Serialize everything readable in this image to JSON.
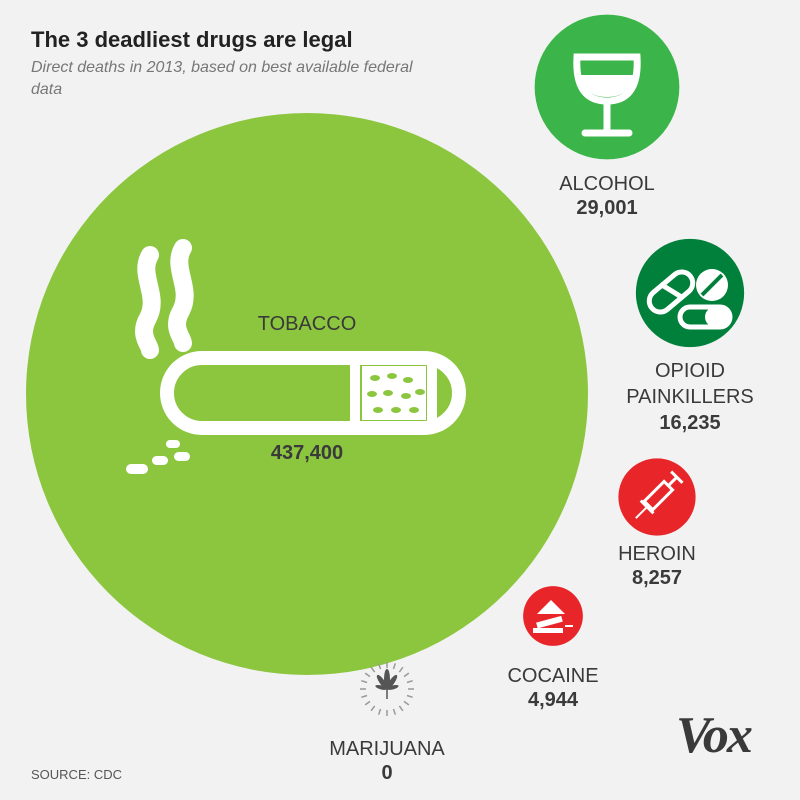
{
  "title": "The 3 deadliest drugs are legal",
  "subtitle": "Direct deaths in 2013, based on best available federal data",
  "source": "SOURCE: CDC",
  "logo": "Vox",
  "colors": {
    "legal": "#8cc63f",
    "alcohol": "#3bb54a",
    "opioid": "#00803b",
    "illegal": "#e8262a",
    "text": "#3a3a3a",
    "background": "#f2f2f2"
  },
  "chart_data": {
    "type": "bubble",
    "unit": "deaths",
    "items": [
      {
        "label": "TOBACCO",
        "value": 437400,
        "value_label": "437,400",
        "icon": "cigarette-icon"
      },
      {
        "label": "ALCOHOL",
        "value": 29001,
        "value_label": "29,001",
        "icon": "wine-glass-icon"
      },
      {
        "label": "OPIOID PAINKILLERS",
        "label_lines": [
          "OPIOID",
          "PAINKILLERS"
        ],
        "value": 16235,
        "value_label": "16,235",
        "icon": "pills-icon"
      },
      {
        "label": "HEROIN",
        "value": 8257,
        "value_label": "8,257",
        "icon": "syringe-icon"
      },
      {
        "label": "COCAINE",
        "value": 4944,
        "value_label": "4,944",
        "icon": "cocaine-icon"
      },
      {
        "label": "MARIJUANA",
        "value": 0,
        "value_label": "0",
        "icon": "cannabis-leaf-icon"
      }
    ]
  }
}
